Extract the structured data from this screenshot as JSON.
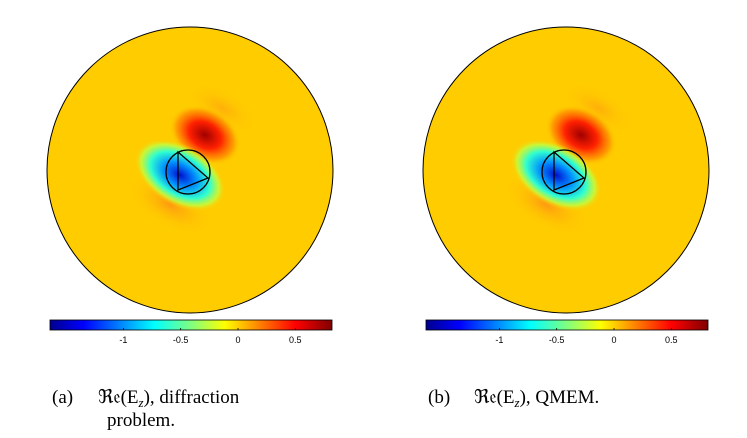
{
  "panels": [
    {
      "label": "(a)",
      "math": "ℜ𝔢(E",
      "sub": "z",
      "line1": "), diffraction",
      "line2": "problem.",
      "colorbar": {
        "clim": [
          -1.64,
          0.82
        ],
        "ticks": [
          -1,
          -0.5,
          0,
          0.5
        ]
      }
    },
    {
      "label": "(b)",
      "math": "ℜ𝔢(E",
      "sub": "z",
      "line1": "), QMEM.",
      "colorbar": {
        "clim": [
          -1.64,
          0.82
        ],
        "ticks": [
          -1,
          -0.5,
          0,
          0.5
        ]
      }
    }
  ]
}
